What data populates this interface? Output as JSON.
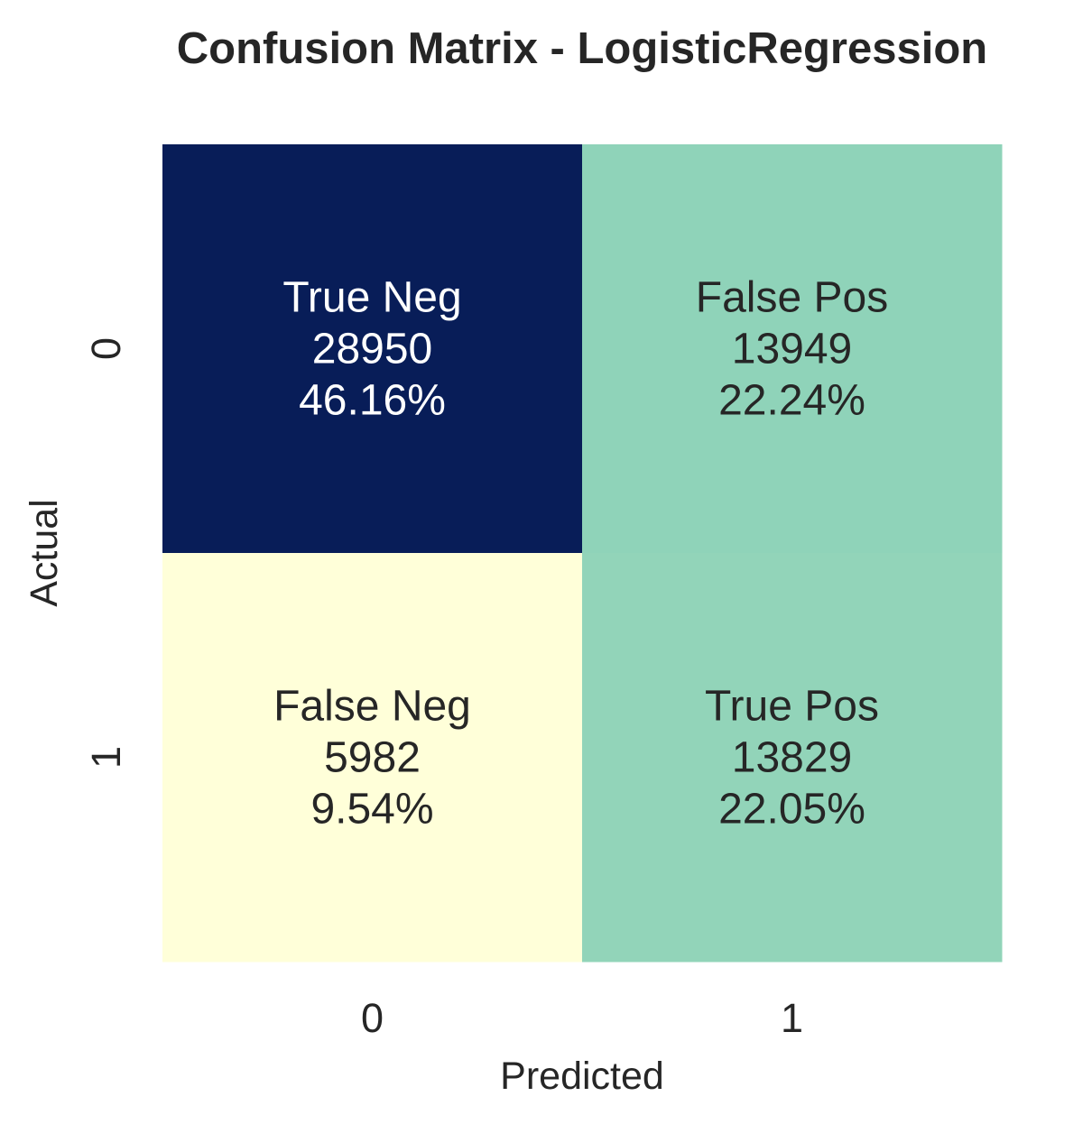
{
  "chart_data": {
    "type": "heatmap",
    "title": "Confusion Matrix - LogisticRegression",
    "xlabel": "Predicted",
    "ylabel": "Actual",
    "x_categories": [
      "0",
      "1"
    ],
    "y_categories": [
      "0",
      "1"
    ],
    "colormap": "YlGnBu",
    "colors": {
      "high": "#081d58",
      "mid": "#93d4b9",
      "low": "#ffffd9",
      "text_dark": "#262626",
      "text_light": "#ffffff"
    },
    "cells": [
      {
        "row": 0,
        "col": 0,
        "label": "True Neg",
        "count": "28950",
        "percent": "46.16%",
        "value": 28950
      },
      {
        "row": 0,
        "col": 1,
        "label": "False Pos",
        "count": "13949",
        "percent": "22.24%",
        "value": 13949
      },
      {
        "row": 1,
        "col": 0,
        "label": "False Neg",
        "count": "5982",
        "percent": "9.54%",
        "value": 5982
      },
      {
        "row": 1,
        "col": 1,
        "label": "True Pos",
        "count": "13829",
        "percent": "22.05%",
        "value": 13829
      }
    ],
    "grid": false,
    "colorbar": false
  }
}
